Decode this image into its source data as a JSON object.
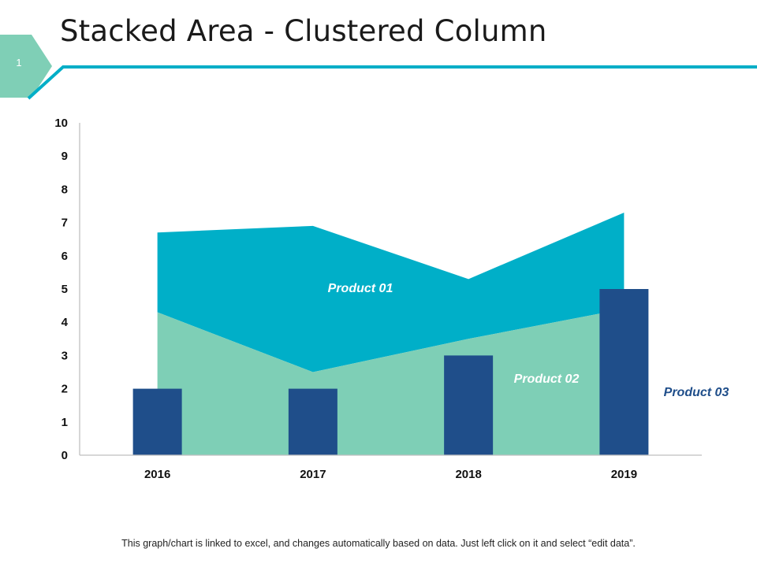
{
  "slide": {
    "title": "Stacked Area - Clustered Column",
    "page_number": "1",
    "footer_note": "This graph/chart is linked to excel, and changes automatically based on data. Just left click on it and select “edit data”."
  },
  "colors": {
    "accent": "#00AEC7",
    "badge": "#7FCFB6",
    "product01": "#00AFC8",
    "product02": "#7ECFB6",
    "product03": "#1F4E8A",
    "product03_label": "#1F4E8A",
    "axis": "#BFBFBF"
  },
  "chart_data": {
    "type": "bar",
    "title": "",
    "xlabel": "",
    "ylabel": "",
    "categories": [
      "2016",
      "2017",
      "2018",
      "2019"
    ],
    "ylim": [
      0,
      10
    ],
    "yticks": [
      0,
      1,
      2,
      3,
      4,
      5,
      6,
      7,
      8,
      9,
      10
    ],
    "series": [
      {
        "name": "Product 01",
        "kind": "stacked-area",
        "values": [
          2.4,
          4.4,
          1.8,
          2.9
        ]
      },
      {
        "name": "Product 02",
        "kind": "stacked-area",
        "values": [
          4.3,
          2.5,
          3.5,
          4.4
        ]
      },
      {
        "name": "Product 03",
        "kind": "clustered-column",
        "values": [
          2,
          2,
          3,
          5
        ]
      }
    ],
    "grid": false,
    "legend": "inline labels"
  }
}
